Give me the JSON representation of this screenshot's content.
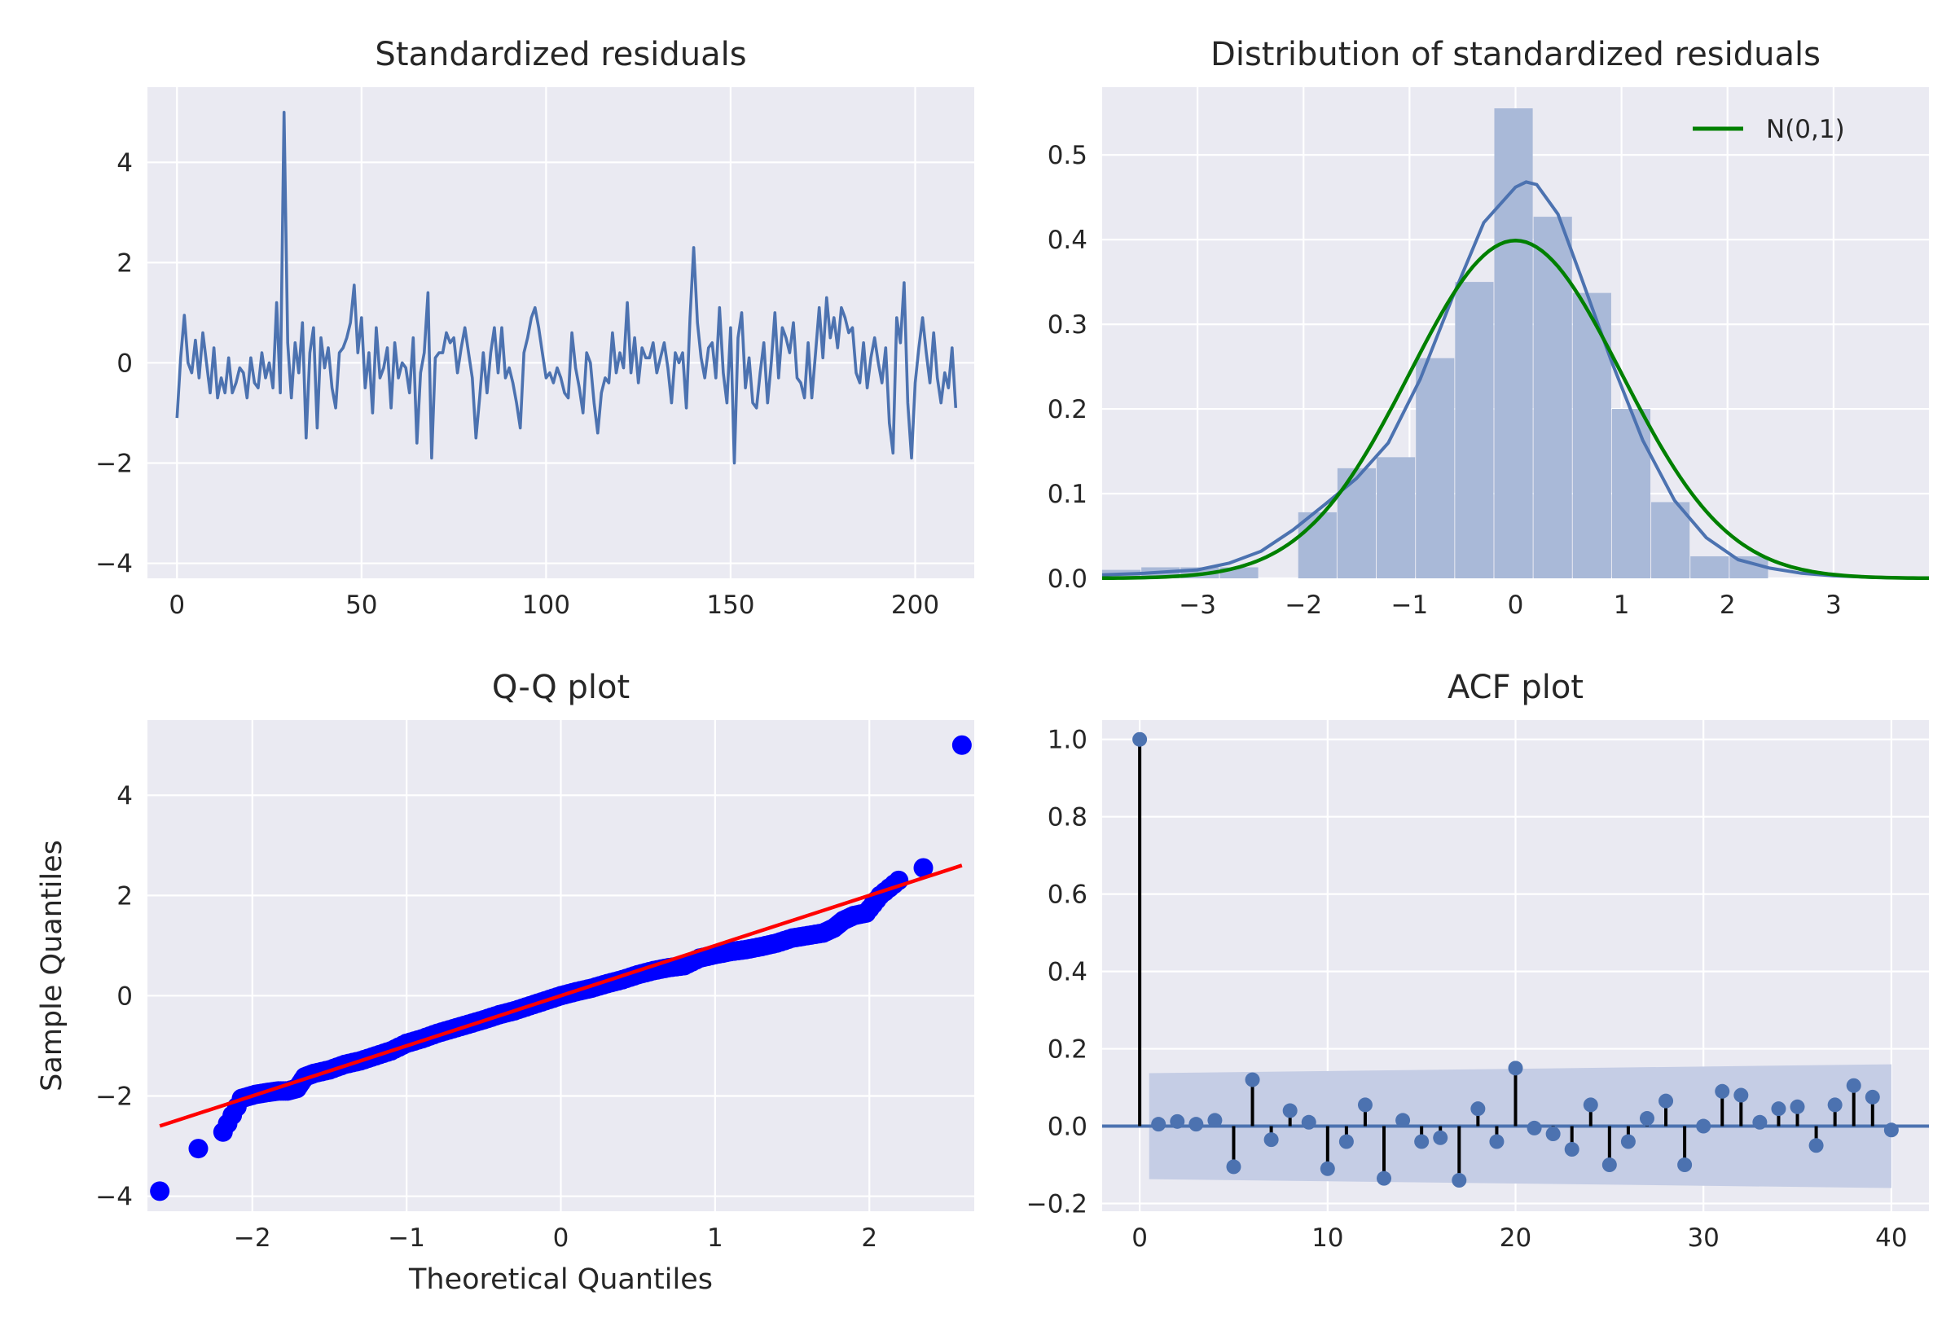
{
  "colors": {
    "axes_bg": "#EAEAF2",
    "grid": "#FFFFFF",
    "line": "#4C72B0",
    "hist": "#A9B9D8",
    "normal": "#008000",
    "qq_points": "#0000FF",
    "qq_line": "#FF0000",
    "acf_stem": "#000000",
    "acf_band": "#C5CDE5"
  },
  "chart_data": [
    {
      "type": "line",
      "title": "Standardized residuals",
      "xlim": [
        -8,
        216
      ],
      "ylim": [
        -4.3,
        5.5
      ],
      "xticks": [
        0,
        50,
        100,
        150,
        200
      ],
      "yticks": [
        -4,
        -2,
        0,
        2,
        4
      ],
      "xtick_labels": [
        "0",
        "50",
        "100",
        "150",
        "200"
      ],
      "ytick_labels": [
        "−4",
        "−2",
        "0",
        "2",
        "4"
      ],
      "series": [
        {
          "values": [
            -1.1,
            0.1,
            0.95,
            0.0,
            -0.2,
            0.45,
            -0.3,
            0.6,
            0.0,
            -0.6,
            0.3,
            -0.7,
            -0.3,
            -0.6,
            0.1,
            -0.6,
            -0.4,
            -0.1,
            -0.2,
            -0.7,
            0.1,
            -0.4,
            -0.5,
            0.2,
            -0.3,
            0.0,
            -0.5,
            1.2,
            -0.6,
            5.0,
            0.4,
            -0.7,
            0.4,
            -0.2,
            0.8,
            -1.5,
            0.2,
            0.7,
            -1.3,
            0.5,
            -0.1,
            0.3,
            -0.5,
            -0.9,
            0.2,
            0.3,
            0.5,
            0.8,
            1.55,
            0.2,
            0.9,
            -0.5,
            0.2,
            -1.0,
            0.7,
            -0.3,
            -0.1,
            0.3,
            -0.9,
            0.4,
            -0.3,
            0.0,
            -0.1,
            -0.6,
            0.5,
            -1.6,
            -0.2,
            0.2,
            1.4,
            -1.9,
            0.1,
            0.2,
            0.2,
            0.6,
            0.4,
            0.5,
            -0.2,
            0.3,
            0.7,
            0.2,
            -0.3,
            -1.5,
            -0.7,
            0.2,
            -0.6,
            0.2,
            0.7,
            -0.2,
            0.7,
            -0.3,
            -0.1,
            -0.4,
            -0.8,
            -1.3,
            0.2,
            0.5,
            0.9,
            1.1,
            0.7,
            0.2,
            -0.3,
            -0.2,
            -0.4,
            -0.1,
            -0.3,
            -0.6,
            -0.7,
            0.6,
            -0.1,
            -0.5,
            -1.0,
            0.2,
            0.0,
            -0.8,
            -1.4,
            -0.6,
            -0.3,
            -0.4,
            0.6,
            -0.2,
            0.2,
            -0.1,
            1.2,
            -0.2,
            0.5,
            -0.4,
            0.3,
            0.1,
            0.1,
            0.4,
            -0.2,
            0.1,
            0.4,
            -0.1,
            -0.8,
            0.2,
            0.0,
            0.2,
            -0.9,
            0.9,
            2.3,
            0.8,
            0.1,
            -0.3,
            0.3,
            0.4,
            -0.3,
            1.1,
            -0.2,
            -0.8,
            0.7,
            -2.0,
            0.5,
            1.0,
            -0.5,
            0.1,
            -0.8,
            -0.9,
            -0.2,
            0.4,
            -0.8,
            0.0,
            1.0,
            -0.3,
            0.7,
            0.5,
            0.2,
            0.8,
            -0.3,
            -0.4,
            -0.7,
            0.4,
            -0.7,
            0.2,
            1.1,
            0.1,
            1.3,
            0.5,
            0.9,
            0.3,
            1.1,
            0.9,
            0.6,
            0.7,
            -0.2,
            -0.4,
            0.4,
            -0.5,
            0.1,
            0.5,
            0.0,
            -0.4,
            0.3,
            -1.2,
            -1.8,
            0.9,
            0.4,
            1.6,
            -0.8,
            -1.9,
            -0.4,
            0.3,
            0.9,
            0.2,
            -0.4,
            0.6,
            -0.3,
            -0.8,
            -0.2,
            -0.5,
            0.3,
            -0.9
          ]
        }
      ]
    },
    {
      "type": "bar",
      "title": "Distribution of standardized residuals",
      "xlim": [
        -3.9,
        3.9
      ],
      "ylim": [
        0,
        0.58
      ],
      "xticks": [
        -3,
        -2,
        -1,
        0,
        1,
        2,
        3
      ],
      "yticks": [
        0.0,
        0.1,
        0.2,
        0.3,
        0.4,
        0.5
      ],
      "xtick_labels": [
        "−3",
        "−2",
        "−1",
        "0",
        "1",
        "2",
        "3"
      ],
      "ytick_labels": [
        "0.0",
        "0.1",
        "0.2",
        "0.3",
        "0.4",
        "0.5"
      ],
      "bins": {
        "edges": [
          -3.9,
          -3.53,
          -3.16,
          -2.79,
          -2.42,
          -2.05,
          -1.68,
          -1.31,
          -0.94,
          -0.57,
          -0.2,
          0.17,
          0.54,
          0.91,
          1.28,
          1.65,
          2.02,
          2.39
        ],
        "density": [
          0.01,
          0.013,
          0.013,
          0.013,
          0.0,
          0.078,
          0.13,
          0.143,
          0.26,
          0.35,
          0.555,
          0.427,
          0.337,
          0.2,
          0.09,
          0.026,
          0.026
        ]
      },
      "kde": {
        "x": [
          -3.9,
          -3.5,
          -3.0,
          -2.7,
          -2.4,
          -2.1,
          -1.8,
          -1.5,
          -1.2,
          -0.9,
          -0.6,
          -0.3,
          0.0,
          0.1,
          0.2,
          0.4,
          0.6,
          0.9,
          1.2,
          1.5,
          1.8,
          2.1,
          2.4,
          2.7,
          3.0,
          3.4,
          3.9
        ],
        "y": [
          0.004,
          0.006,
          0.01,
          0.018,
          0.032,
          0.057,
          0.087,
          0.118,
          0.16,
          0.235,
          0.33,
          0.42,
          0.462,
          0.468,
          0.465,
          0.43,
          0.362,
          0.258,
          0.163,
          0.092,
          0.048,
          0.022,
          0.012,
          0.006,
          0.003,
          0.001,
          0.0
        ]
      },
      "normal_curve": {
        "name": "N(0,1)",
        "mean": 0,
        "sd": 1
      },
      "legend": {
        "labels": [
          "N(0,1)"
        ],
        "position": "top-right"
      }
    },
    {
      "type": "scatter",
      "title": "Q-Q plot",
      "xlabel": "Theoretical Quantiles",
      "ylabel": "Sample Quantiles",
      "xlim": [
        -2.68,
        2.68
      ],
      "ylim": [
        -4.3,
        5.5
      ],
      "xticks": [
        -2,
        -1,
        0,
        1,
        2
      ],
      "yticks": [
        -4,
        -2,
        0,
        2,
        4
      ],
      "xtick_labels": [
        "−2",
        "−1",
        "0",
        "1",
        "2"
      ],
      "ytick_labels": [
        "−4",
        "−2",
        "0",
        "2",
        "4"
      ],
      "points": {
        "theoretical": [
          -2.6,
          -2.35,
          -2.19,
          -2.07,
          -1.98,
          -1.9,
          -1.83,
          -1.77,
          -1.71,
          -1.66,
          -1.6,
          -1.5,
          -1.4,
          -1.3,
          -1.2,
          -1.1,
          -1.0,
          -0.9,
          -0.8,
          -0.7,
          -0.6,
          -0.5,
          -0.4,
          -0.3,
          -0.2,
          -0.1,
          0.0,
          0.1,
          0.2,
          0.3,
          0.4,
          0.5,
          0.6,
          0.7,
          0.8,
          0.9,
          1.0,
          1.1,
          1.2,
          1.3,
          1.4,
          1.5,
          1.6,
          1.7,
          1.77,
          1.83,
          1.9,
          1.98,
          2.07,
          2.19,
          2.35,
          2.6
        ],
        "sample": [
          -3.9,
          -3.05,
          -2.72,
          -2.05,
          -1.97,
          -1.93,
          -1.9,
          -1.9,
          -1.85,
          -1.62,
          -1.55,
          -1.48,
          -1.37,
          -1.3,
          -1.2,
          -1.1,
          -0.95,
          -0.86,
          -0.75,
          -0.66,
          -0.57,
          -0.48,
          -0.38,
          -0.3,
          -0.2,
          -0.1,
          0.0,
          0.08,
          0.15,
          0.24,
          0.32,
          0.42,
          0.5,
          0.56,
          0.6,
          0.75,
          0.82,
          0.88,
          0.92,
          0.98,
          1.05,
          1.15,
          1.2,
          1.25,
          1.35,
          1.5,
          1.6,
          1.65,
          2.0,
          2.3,
          2.55,
          5.0
        ]
      },
      "reference_line": {
        "x": [
          -2.6,
          2.6
        ],
        "y": [
          -2.6,
          2.6
        ]
      }
    },
    {
      "type": "bar",
      "title": "ACF plot",
      "xlim": [
        -2,
        42
      ],
      "ylim": [
        -0.22,
        1.05
      ],
      "xticks": [
        0,
        10,
        20,
        30,
        40
      ],
      "yticks": [
        -0.2,
        0.0,
        0.2,
        0.4,
        0.6,
        0.8,
        1.0
      ],
      "xtick_labels": [
        "0",
        "10",
        "20",
        "30",
        "40"
      ],
      "ytick_labels": [
        "−0.2",
        "0.0",
        "0.2",
        "0.4",
        "0.6",
        "0.8",
        "1.0"
      ],
      "lags": [
        0,
        1,
        2,
        3,
        4,
        5,
        6,
        7,
        8,
        9,
        10,
        11,
        12,
        13,
        14,
        15,
        16,
        17,
        18,
        19,
        20,
        21,
        22,
        23,
        24,
        25,
        26,
        27,
        28,
        29,
        30,
        31,
        32,
        33,
        34,
        35,
        36,
        37,
        38,
        39,
        40
      ],
      "values": [
        1.0,
        0.005,
        0.012,
        0.005,
        0.015,
        -0.105,
        0.12,
        -0.035,
        0.04,
        0.01,
        -0.11,
        -0.04,
        0.055,
        -0.135,
        0.015,
        -0.04,
        -0.03,
        -0.14,
        0.045,
        -0.04,
        0.15,
        -0.005,
        -0.02,
        -0.06,
        0.055,
        -0.1,
        -0.04,
        0.02,
        0.065,
        -0.1,
        0.0,
        0.09,
        0.08,
        0.01,
        0.045,
        0.05,
        -0.05,
        0.055,
        0.105,
        0.075,
        -0.01
      ],
      "confidence_band": {
        "lags": [
          1,
          40
        ],
        "upper": [
          0.137,
          0.16
        ],
        "lower": [
          -0.137,
          -0.16
        ]
      }
    }
  ]
}
